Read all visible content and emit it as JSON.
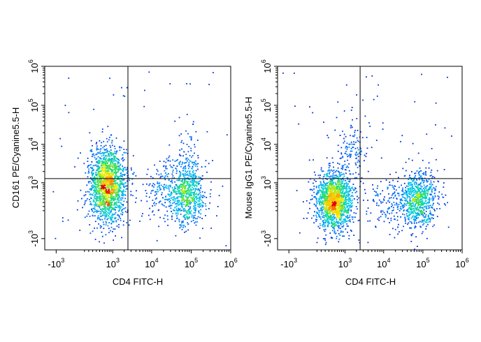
{
  "chart_data": [
    {
      "type": "scatter",
      "subtype": "flow-cytometry-density-plot",
      "title": "",
      "xlabel": "CD4 FITC-H",
      "ylabel": "CD161 PE/Cyanine5.5-H",
      "x_scale": "biexponential",
      "y_scale": "biexponential",
      "xlim": [
        -2000,
        1000000
      ],
      "ylim": [
        -2000,
        1000000
      ],
      "x_ticks": [
        {
          "value": -1000,
          "base": "-10",
          "exp": "3"
        },
        {
          "value": 1000,
          "base": "10",
          "exp": "3"
        },
        {
          "value": 10000,
          "base": "10",
          "exp": "4"
        },
        {
          "value": 100000,
          "base": "10",
          "exp": "5"
        },
        {
          "value": 1000000,
          "base": "10",
          "exp": "6"
        }
      ],
      "y_ticks": [
        {
          "value": -1000,
          "base": "-10",
          "exp": "3"
        },
        {
          "value": 1000,
          "base": "10",
          "exp": "3"
        },
        {
          "value": 10000,
          "base": "10",
          "exp": "4"
        },
        {
          "value": 100000,
          "base": "10",
          "exp": "5"
        },
        {
          "value": 1000000,
          "base": "10",
          "exp": "6"
        }
      ],
      "quadrant_gate": {
        "x": 2500,
        "y": 1300
      },
      "populations": [
        {
          "x": 700,
          "y": 2000,
          "weight": 0.3
        },
        {
          "x": 700,
          "y": 400,
          "weight": 0.34
        },
        {
          "x": 75000,
          "y": 400,
          "weight": 0.26
        },
        {
          "x": 75000,
          "y": 3000,
          "weight": 0.05
        },
        {
          "x": 15000,
          "y": 700,
          "weight": 0.05
        }
      ],
      "grid": false,
      "legend": "none"
    },
    {
      "type": "scatter",
      "subtype": "flow-cytometry-density-plot",
      "title": "",
      "xlabel": "CD4 FITC-H",
      "ylabel": "Mouse IgG1 PE/Cyanine5.5-H",
      "x_scale": "biexponential",
      "y_scale": "biexponential",
      "xlim": [
        -2000,
        1000000
      ],
      "ylim": [
        -2000,
        1000000
      ],
      "x_ticks": [
        {
          "value": -1000,
          "base": "-10",
          "exp": "3"
        },
        {
          "value": 1000,
          "base": "10",
          "exp": "3"
        },
        {
          "value": 10000,
          "base": "10",
          "exp": "4"
        },
        {
          "value": 100000,
          "base": "10",
          "exp": "5"
        },
        {
          "value": 1000000,
          "base": "10",
          "exp": "6"
        }
      ],
      "y_ticks": [
        {
          "value": -1000,
          "base": "-10",
          "exp": "3"
        },
        {
          "value": 1000,
          "base": "10",
          "exp": "3"
        },
        {
          "value": 10000,
          "base": "10",
          "exp": "4"
        },
        {
          "value": 100000,
          "base": "10",
          "exp": "5"
        },
        {
          "value": 1000000,
          "base": "10",
          "exp": "6"
        }
      ],
      "quadrant_gate": {
        "x": 2500,
        "y": 1300
      },
      "populations": [
        {
          "x": 450,
          "y": 250,
          "weight": 0.6
        },
        {
          "x": 75000,
          "y": 300,
          "weight": 0.3
        },
        {
          "x": 12000,
          "y": 200,
          "weight": 0.05
        },
        {
          "x": 1500,
          "y": 8000,
          "weight": 0.05
        }
      ],
      "grid": false,
      "legend": "none"
    }
  ]
}
